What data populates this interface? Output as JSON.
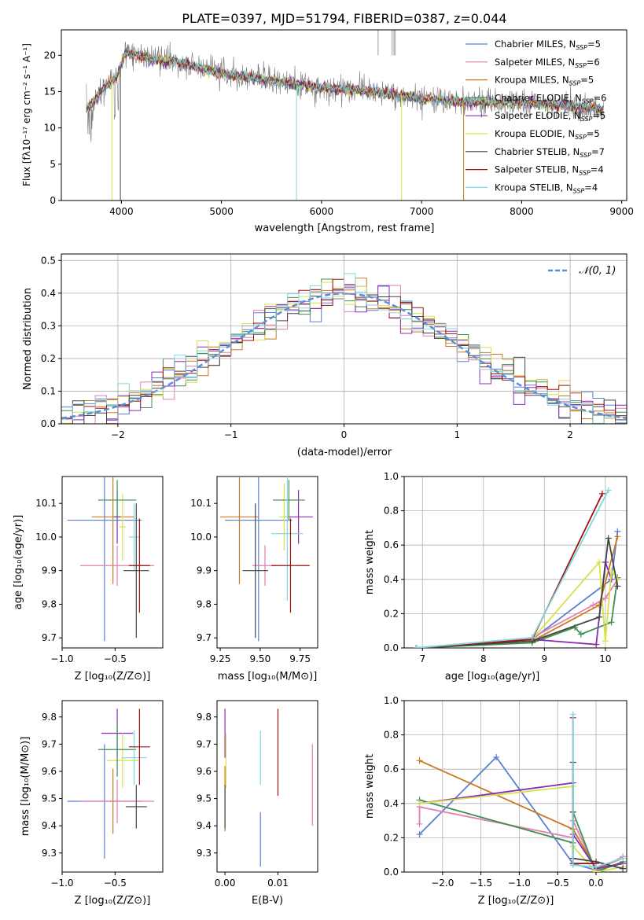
{
  "chart_data": [
    {
      "id": "spectrum",
      "type": "line",
      "title": "PLATE=0397, MJD=51794, FIBERID=0387, z=0.044",
      "xlabel": "wavelength [Angstrom, rest frame]",
      "ylabel": "Flux [fλ10⁻¹⁷ erg cm⁻² s⁻¹ A⁻¹]",
      "xlim": [
        3400,
        9050
      ],
      "ylim": [
        0,
        23.5
      ],
      "xticks": [
        4000,
        5000,
        6000,
        7000,
        8000,
        9000
      ],
      "yticks": [
        0,
        5,
        10,
        15,
        20
      ],
      "legend_position": "right",
      "data_continuum_x": [
        3650,
        3800,
        3950,
        4050,
        4300,
        4600,
        5000,
        5500,
        6000,
        6500,
        6800,
        7000,
        7500,
        8000,
        8500,
        8800
      ],
      "data_continuum_y": [
        12.5,
        15,
        17,
        20.5,
        19.5,
        19,
        17.5,
        16.5,
        15.5,
        15,
        14.5,
        14,
        13.5,
        13.5,
        13,
        12.5
      ],
      "series": [
        {
          "name": "Chabrier MILES, N$_{SSP}$=5",
          "legend": "Chabrier MILES, N",
          "sub": "SSP",
          "suffix": "=5",
          "color": "#5b7fd4"
        },
        {
          "name": "Salpeter MILES, N$_{SSP}$=6",
          "legend": "Salpeter MILES, N",
          "sub": "SSP",
          "suffix": "=6",
          "color": "#e27fb3"
        },
        {
          "name": "Kroupa MILES, N$_{SSP}$=5",
          "legend": "Kroupa MILES, N",
          "sub": "SSP",
          "suffix": "=5",
          "color": "#c97a1e"
        },
        {
          "name": "Chabrier ELODIE, N$_{SSP}$=6",
          "legend": "Chabrier ELODIE, N",
          "sub": "SSP",
          "suffix": "=6",
          "color": "#3f8f4f"
        },
        {
          "name": "Salpeter ELODIE, N$_{SSP}$=5",
          "legend": "Salpeter ELODIE, N",
          "sub": "SSP",
          "suffix": "=5",
          "color": "#8a2bb8"
        },
        {
          "name": "Kroupa ELODIE, N$_{SSP}$=5",
          "legend": "Kroupa ELODIE, N",
          "sub": "SSP",
          "suffix": "=5",
          "color": "#d6e24a"
        },
        {
          "name": "Chabrier STELIB, N$_{SSP}$=7",
          "legend": "Chabrier STELIB, N",
          "sub": "SSP",
          "suffix": "=7",
          "color": "#444444"
        },
        {
          "name": "Salpeter STELIB, N$_{SSP}$=4",
          "legend": "Salpeter STELIB, N",
          "sub": "SSP",
          "suffix": "=4",
          "color": "#a01010"
        },
        {
          "name": "Kroupa STELIB, N$_{SSP}$=4",
          "legend": "Kroupa STELIB, N",
          "sub": "SSP",
          "suffix": "=4",
          "color": "#7fd8e0"
        }
      ]
    },
    {
      "id": "residuals",
      "type": "histogram",
      "xlabel": "(data-model)/error",
      "ylabel": "Normed distribution",
      "xlim": [
        -2.5,
        2.5
      ],
      "ylim": [
        0,
        0.52
      ],
      "xticks": [
        -2,
        -1,
        0,
        1,
        2
      ],
      "yticks": [
        0.0,
        0.1,
        0.2,
        0.3,
        0.4,
        0.5
      ],
      "grid": true,
      "legend": "𝒩(0, 1)",
      "legend_position": "top-right",
      "gaussian": {
        "mean": 0,
        "sigma": 1,
        "color": "#5b8fd8"
      }
    },
    {
      "id": "age_vs_Z",
      "type": "errorbar",
      "xlabel": "Z [log₁₀(Z/Z⊙)]",
      "ylabel": "age  [log₁₀(age/yr)]",
      "xlim": [
        -1.0,
        -0.05
      ],
      "ylim": [
        9.67,
        10.18
      ],
      "xticks": [
        -1.0,
        -0.5
      ],
      "yticks": [
        9.7,
        9.8,
        9.9,
        10.0,
        10.1
      ],
      "points": [
        {
          "x": -0.6,
          "xerr": 0.35,
          "y": 10.05,
          "yerr": 0.36,
          "color": "#5b7fd4"
        },
        {
          "x": -0.52,
          "xerr": 0.2,
          "y": 10.06,
          "yerr": 0.2,
          "color": "#c97a1e"
        },
        {
          "x": -0.48,
          "xerr": 0.35,
          "y": 9.915,
          "yerr": 0.06,
          "color": "#e27fb3"
        },
        {
          "x": -0.48,
          "xerr": 0.03,
          "y": 10.06,
          "yerr": 0.08,
          "color": "#8a2bb8"
        },
        {
          "x": -0.43,
          "xerr": 0.03,
          "y": 10.03,
          "yerr": 0.1,
          "color": "#d6e24a"
        },
        {
          "x": -0.48,
          "xerr": 0.18,
          "y": 10.11,
          "yerr": 0.06,
          "color": "#3f8f4f"
        },
        {
          "x": -0.32,
          "xerr": 0.05,
          "y": 10.0,
          "yerr": 0.1,
          "color": "#7fd8e0"
        },
        {
          "x": -0.27,
          "xerr": 0.1,
          "y": 9.915,
          "yerr": 0.14,
          "color": "#a01010"
        },
        {
          "x": -0.3,
          "xerr": 0.12,
          "y": 9.9,
          "yerr": 0.2,
          "color": "#444444"
        }
      ]
    },
    {
      "id": "age_vs_mass",
      "type": "errorbar",
      "xlabel": "mass [log₁₀(M/M⊙)]",
      "ylabel": "",
      "xlim": [
        9.23,
        9.86
      ],
      "ylim": [
        9.67,
        10.18
      ],
      "xticks": [
        9.25,
        9.5,
        9.75
      ],
      "yticks": [
        9.7,
        9.8,
        9.9,
        10.0,
        10.1
      ],
      "points": [
        {
          "x": 9.49,
          "xerr": 0.21,
          "y": 10.05,
          "yerr": 0.36,
          "color": "#5b7fd4"
        },
        {
          "x": 9.37,
          "xerr": 0.12,
          "y": 10.06,
          "yerr": 0.2,
          "color": "#c97a1e"
        },
        {
          "x": 9.53,
          "xerr": 0.08,
          "y": 9.915,
          "yerr": 0.06,
          "color": "#e27fb3"
        },
        {
          "x": 9.74,
          "xerr": 0.09,
          "y": 10.06,
          "yerr": 0.08,
          "color": "#8a2bb8"
        },
        {
          "x": 9.65,
          "xerr": 0.03,
          "y": 10.06,
          "yerr": 0.1,
          "color": "#d6e24a"
        },
        {
          "x": 9.68,
          "xerr": 0.1,
          "y": 10.11,
          "yerr": 0.06,
          "color": "#3f8f4f"
        },
        {
          "x": 9.67,
          "xerr": 0.1,
          "y": 10.01,
          "yerr": 0.2,
          "color": "#7fd8e0"
        },
        {
          "x": 9.69,
          "xerr": 0.12,
          "y": 9.915,
          "yerr": 0.14,
          "color": "#a01010"
        },
        {
          "x": 9.47,
          "xerr": 0.08,
          "y": 9.9,
          "yerr": 0.2,
          "color": "#444444"
        }
      ]
    },
    {
      "id": "weight_vs_age",
      "type": "line",
      "xlabel": "age  [log₁₀(age/yr)]",
      "ylabel": "mass weight",
      "xlim": [
        6.7,
        10.35
      ],
      "ylim": [
        0,
        1.0
      ],
      "xticks": [
        7,
        8,
        9,
        10
      ],
      "yticks": [
        0.0,
        0.2,
        0.4,
        0.6,
        0.8,
        1.0
      ],
      "grid": true,
      "series": [
        {
          "color": "#5b7fd4",
          "x": [
            6.9,
            8.8,
            10.1,
            10.2
          ],
          "y": [
            0.0,
            0.05,
            0.4,
            0.68
          ]
        },
        {
          "color": "#e27fb3",
          "x": [
            6.9,
            8.8,
            9.8,
            10.0,
            10.2
          ],
          "y": [
            0.0,
            0.06,
            0.25,
            0.29,
            0.4
          ]
        },
        {
          "color": "#c97a1e",
          "x": [
            6.9,
            8.8,
            9.9,
            10.2
          ],
          "y": [
            0.0,
            0.04,
            0.25,
            0.65
          ]
        },
        {
          "color": "#3f8f4f",
          "x": [
            6.9,
            8.8,
            9.5,
            9.6,
            10.1,
            10.2
          ],
          "y": [
            0.0,
            0.03,
            0.12,
            0.08,
            0.15,
            0.41
          ]
        },
        {
          "color": "#8a2bb8",
          "x": [
            6.9,
            8.8,
            9.85,
            10.0,
            10.1
          ],
          "y": [
            0.0,
            0.05,
            0.02,
            0.5,
            0.4
          ]
        },
        {
          "color": "#d6e24a",
          "x": [
            6.9,
            8.8,
            9.9,
            10.0,
            10.1,
            10.2
          ],
          "y": [
            0.0,
            0.05,
            0.5,
            0.04,
            0.45,
            0.4
          ]
        },
        {
          "color": "#444444",
          "x": [
            6.9,
            8.8,
            9.9,
            10.05,
            10.2
          ],
          "y": [
            0.0,
            0.04,
            0.18,
            0.64,
            0.36
          ]
        },
        {
          "color": "#a01010",
          "x": [
            6.9,
            8.8,
            9.95
          ],
          "y": [
            0.0,
            0.05,
            0.9
          ]
        },
        {
          "color": "#7fd8e0",
          "x": [
            6.9,
            8.8,
            10.05
          ],
          "y": [
            0.0,
            0.06,
            0.92
          ]
        }
      ]
    },
    {
      "id": "mass_vs_Z",
      "type": "errorbar",
      "xlabel": "Z [log₁₀(Z/Z⊙)]",
      "ylabel": "mass [log₁₀(M/M⊙)]",
      "xlim": [
        -1.0,
        -0.05
      ],
      "ylim": [
        9.23,
        9.86
      ],
      "xticks": [
        -1.0,
        -0.5
      ],
      "yticks": [
        9.3,
        9.4,
        9.5,
        9.6,
        9.7,
        9.8
      ],
      "points": [
        {
          "x": -0.6,
          "xerr": 0.35,
          "y": 9.49,
          "yerr": 0.21,
          "color": "#5b7fd4"
        },
        {
          "x": -0.52,
          "xerr": 0.03,
          "y": 9.49,
          "yerr": 0.12,
          "color": "#c97a1e"
        },
        {
          "x": -0.48,
          "xerr": 0.35,
          "y": 9.49,
          "yerr": 0.08,
          "color": "#e27fb3"
        },
        {
          "x": -0.48,
          "xerr": 0.15,
          "y": 9.74,
          "yerr": 0.09,
          "color": "#8a2bb8"
        },
        {
          "x": -0.43,
          "xerr": 0.15,
          "y": 9.64,
          "yerr": 0.1,
          "color": "#d6e24a"
        },
        {
          "x": -0.48,
          "xerr": 0.18,
          "y": 9.68,
          "yerr": 0.1,
          "color": "#3f8f4f"
        },
        {
          "x": -0.32,
          "xerr": 0.12,
          "y": 9.65,
          "yerr": 0.1,
          "color": "#7fd8e0"
        },
        {
          "x": -0.27,
          "xerr": 0.1,
          "y": 9.69,
          "yerr": 0.14,
          "color": "#a01010"
        },
        {
          "x": -0.3,
          "xerr": 0.1,
          "y": 9.47,
          "yerr": 0.08,
          "color": "#444444"
        }
      ]
    },
    {
      "id": "mass_vs_ebv",
      "type": "errorbar",
      "xlabel": "E(B-V)",
      "ylabel": "",
      "xlim": [
        -0.0015,
        0.0175
      ],
      "ylim": [
        9.23,
        9.86
      ],
      "xticks": [
        0.0,
        0.01
      ],
      "yticks": [
        9.3,
        9.4,
        9.5,
        9.6,
        9.7,
        9.8
      ],
      "points": [
        {
          "x": 0.0,
          "y": 9.5,
          "yerr": 0.12,
          "color": "#c97a1e"
        },
        {
          "x": 0.0,
          "y": 9.74,
          "yerr": 0.09,
          "color": "#8a2bb8"
        },
        {
          "x": 0.0002,
          "y": 9.64,
          "yerr": 0.1,
          "color": "#d6e24a"
        },
        {
          "x": 0.0,
          "y": 9.47,
          "yerr": 0.08,
          "color": "#444444"
        },
        {
          "x": 0.0067,
          "y": 9.35,
          "yerr": 0.1,
          "color": "#5b7fd4"
        },
        {
          "x": 0.0067,
          "y": 9.65,
          "yerr": 0.1,
          "color": "#7fd8e0"
        },
        {
          "x": 0.01,
          "y": 9.67,
          "yerr": 0.16,
          "color": "#a01010"
        },
        {
          "x": 0.0165,
          "y": 9.55,
          "yerr": 0.15,
          "color": "#e27fb3"
        }
      ]
    },
    {
      "id": "weight_vs_Z",
      "type": "line",
      "xlabel": "Z [log₁₀(Z/Z⊙)]",
      "ylabel": "mass weight",
      "xlim": [
        -2.5,
        0.4
      ],
      "ylim": [
        0,
        1.0
      ],
      "xticks": [
        -2.0,
        -1.5,
        -1.0,
        -0.5,
        0.0
      ],
      "yticks": [
        0.0,
        0.2,
        0.4,
        0.6,
        0.8,
        1.0
      ],
      "grid": true,
      "series": [
        {
          "color": "#5b7fd4",
          "x": [
            -2.3,
            -1.3,
            -0.3,
            0.0,
            0.35
          ],
          "y": [
            0.22,
            0.67,
            0.05,
            0.01,
            0.05
          ]
        },
        {
          "color": "#e27fb3",
          "x": [
            -2.3,
            -2.3,
            -0.3,
            -0.3,
            0.0,
            0.35
          ],
          "y": [
            0.28,
            0.38,
            0.2,
            0.3,
            0.01,
            0.09
          ]
        },
        {
          "color": "#c97a1e",
          "x": [
            -2.3,
            -0.3,
            0.0,
            0.35
          ],
          "y": [
            0.65,
            0.25,
            0.02,
            0.08
          ]
        },
        {
          "color": "#3f8f4f",
          "x": [
            -2.3,
            -0.3,
            -0.3,
            0.0,
            0.35
          ],
          "y": [
            0.42,
            0.17,
            0.35,
            0.0,
            0.06
          ]
        },
        {
          "color": "#8a2bb8",
          "x": [
            -2.3,
            -0.3,
            -0.3,
            0.0,
            0.35
          ],
          "y": [
            0.4,
            0.52,
            0.22,
            0.02,
            0.05
          ]
        },
        {
          "color": "#d6e24a",
          "x": [
            -2.3,
            -0.3,
            -0.3,
            0.0,
            0.35
          ],
          "y": [
            0.4,
            0.5,
            0.15,
            0.0,
            0.03
          ]
        },
        {
          "color": "#444444",
          "x": [
            -0.3,
            -0.3,
            -0.3,
            0.0,
            0.35
          ],
          "y": [
            0.64,
            0.35,
            0.08,
            0.06,
            0.02
          ]
        },
        {
          "color": "#a01010",
          "x": [
            -0.3,
            -0.3,
            0.0
          ],
          "y": [
            0.9,
            0.05,
            0.05
          ]
        },
        {
          "color": "#7fd8e0",
          "x": [
            -0.3,
            -0.3,
            0.0,
            0.35
          ],
          "y": [
            0.92,
            0.04,
            0.03,
            0.08
          ]
        }
      ]
    }
  ]
}
